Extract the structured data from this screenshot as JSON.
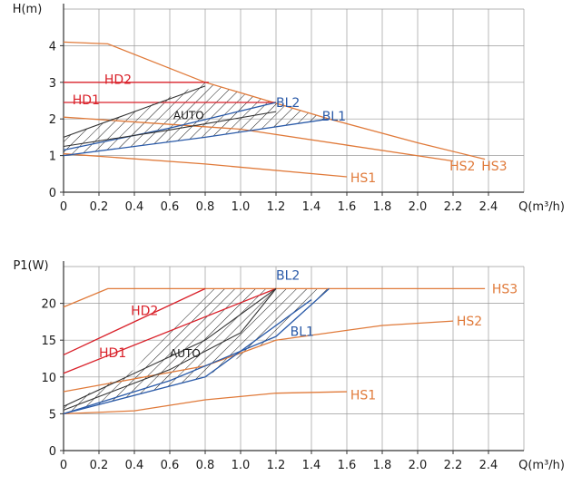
{
  "colors": {
    "orange": "#e07a3a",
    "red": "#d9212a",
    "blue": "#2a5aa8",
    "grid": "#9a9a9a",
    "axis": "#333333",
    "hatch": "#1a1a1a"
  },
  "chart_data": [
    {
      "type": "line",
      "ylabel": "H(m)",
      "xlabel": "Q(m³/h)",
      "xlim": [
        0,
        2.6
      ],
      "ylim": [
        0,
        5
      ],
      "x_ticks": [
        "0",
        "0.2",
        "0.4",
        "0.6",
        "0.8",
        "1.0",
        "1.2",
        "1.4",
        "1.6",
        "1.8",
        "2.0",
        "2.2",
        "2.4"
      ],
      "y_ticks": [
        "0",
        "1",
        "2",
        "3",
        "4"
      ],
      "grid": true,
      "series": [
        {
          "name": "HS3",
          "color": "orange",
          "points": [
            [
              0,
              4.1
            ],
            [
              0.25,
              4.05
            ],
            [
              0.8,
              3.0
            ],
            [
              1.5,
              2.0
            ],
            [
              2.0,
              1.35
            ],
            [
              2.38,
              0.9
            ]
          ],
          "label_at": [
            2.36,
            0.72
          ]
        },
        {
          "name": "HS2",
          "color": "orange",
          "points": [
            [
              0,
              2.05
            ],
            [
              1.0,
              1.72
            ],
            [
              2.2,
              0.85
            ]
          ],
          "label_at": [
            2.18,
            0.72
          ]
        },
        {
          "name": "HS1",
          "color": "orange",
          "points": [
            [
              0,
              1.05
            ],
            [
              0.8,
              0.77
            ],
            [
              1.6,
              0.42
            ]
          ],
          "label_at": [
            1.62,
            0.4
          ]
        },
        {
          "name": "HD2",
          "color": "red",
          "points": [
            [
              0,
              3.0
            ],
            [
              0.82,
              3.0
            ]
          ],
          "label_at": [
            0.23,
            3.08
          ]
        },
        {
          "name": "HD1",
          "color": "red",
          "points": [
            [
              0,
              2.45
            ],
            [
              1.2,
              2.45
            ]
          ],
          "label_at": [
            0.05,
            2.52
          ]
        },
        {
          "name": "BL2",
          "color": "blue",
          "points": [
            [
              0,
              1.15
            ],
            [
              0.6,
              1.75
            ],
            [
              1.2,
              2.45
            ]
          ],
          "label_at": [
            1.2,
            2.45
          ]
        },
        {
          "name": "BL1",
          "color": "blue",
          "points": [
            [
              0,
              1.0
            ],
            [
              0.8,
              1.5
            ],
            [
              1.5,
              2.0
            ]
          ],
          "label_at": [
            1.46,
            2.08
          ]
        },
        {
          "name": "",
          "color": "axis",
          "points": [
            [
              0,
              1.5
            ],
            [
              0.4,
              2.2
            ],
            [
              0.8,
              2.9
            ]
          ]
        },
        {
          "name": "",
          "color": "axis",
          "points": [
            [
              0,
              1.25
            ],
            [
              0.6,
              1.7
            ],
            [
              1.2,
              2.2
            ]
          ]
        }
      ],
      "annotation": {
        "text": "AUTO",
        "at": [
          0.62,
          2.12
        ]
      },
      "hatched_region": [
        [
          0,
          1.0
        ],
        [
          0,
          1.5
        ],
        [
          0.4,
          2.2
        ],
        [
          0.8,
          3.0
        ],
        [
          1.2,
          2.45
        ],
        [
          1.5,
          2.0
        ],
        [
          0.8,
          1.5
        ]
      ]
    },
    {
      "type": "line",
      "ylabel": "P1(W)",
      "xlabel": "Q(m³/h)",
      "xlim": [
        0,
        2.6
      ],
      "ylim": [
        0,
        25
      ],
      "x_ticks": [
        "0",
        "0.2",
        "0.4",
        "0.6",
        "0.8",
        "1.0",
        "1.2",
        "1.4",
        "1.6",
        "1.8",
        "2.0",
        "2.2",
        "2.4"
      ],
      "y_ticks": [
        "0",
        "5",
        "10",
        "15",
        "20"
      ],
      "grid": true,
      "series": [
        {
          "name": "HS3",
          "color": "orange",
          "points": [
            [
              0,
              19.5
            ],
            [
              0.25,
              22
            ],
            [
              2.38,
              22
            ]
          ],
          "label_at": [
            2.42,
            22
          ]
        },
        {
          "name": "HS2",
          "color": "orange",
          "points": [
            [
              0,
              8
            ],
            [
              0.8,
              11.5
            ],
            [
              1.2,
              15
            ],
            [
              1.8,
              17
            ],
            [
              2.2,
              17.6
            ]
          ],
          "label_at": [
            2.22,
            17.6
          ]
        },
        {
          "name": "HS1",
          "color": "orange",
          "points": [
            [
              0,
              5
            ],
            [
              0.4,
              5.4
            ],
            [
              0.8,
              6.9
            ],
            [
              1.2,
              7.8
            ],
            [
              1.6,
              8
            ]
          ],
          "label_at": [
            1.62,
            7.6
          ]
        },
        {
          "name": "HD2",
          "color": "red",
          "points": [
            [
              0,
              13
            ],
            [
              0.8,
              22
            ]
          ],
          "label_at": [
            0.38,
            19
          ]
        },
        {
          "name": "HD1",
          "color": "red",
          "points": [
            [
              0,
              10.5
            ],
            [
              1.2,
              22
            ]
          ],
          "label_at": [
            0.2,
            13.3
          ]
        },
        {
          "name": "BL2",
          "color": "blue",
          "points": [
            [
              0,
              5
            ],
            [
              0.6,
              9.5
            ],
            [
              1.2,
              15.5
            ],
            [
              1.5,
              22
            ]
          ],
          "label_at": [
            1.2,
            23.8
          ]
        },
        {
          "name": "BL1",
          "color": "blue",
          "points": [
            [
              0,
              5
            ],
            [
              0.8,
              10
            ],
            [
              1.4,
              20.5
            ]
          ],
          "label_at": [
            1.28,
            16.2
          ]
        },
        {
          "name": "",
          "color": "axis",
          "points": [
            [
              0,
              6
            ],
            [
              0.8,
              15
            ],
            [
              1.2,
              22
            ]
          ]
        },
        {
          "name": "",
          "color": "axis",
          "points": [
            [
              0,
              5.5
            ],
            [
              0.6,
              11
            ],
            [
              1.0,
              16
            ],
            [
              1.2,
              22
            ]
          ]
        }
      ],
      "annotation": {
        "text": "AUTO",
        "at": [
          0.6,
          13.3
        ]
      },
      "hatched_region": [
        [
          0,
          5
        ],
        [
          0,
          6
        ],
        [
          0.4,
          11
        ],
        [
          0.8,
          22
        ],
        [
          1.5,
          22
        ],
        [
          1.2,
          15.5
        ],
        [
          0.8,
          10
        ]
      ]
    }
  ]
}
